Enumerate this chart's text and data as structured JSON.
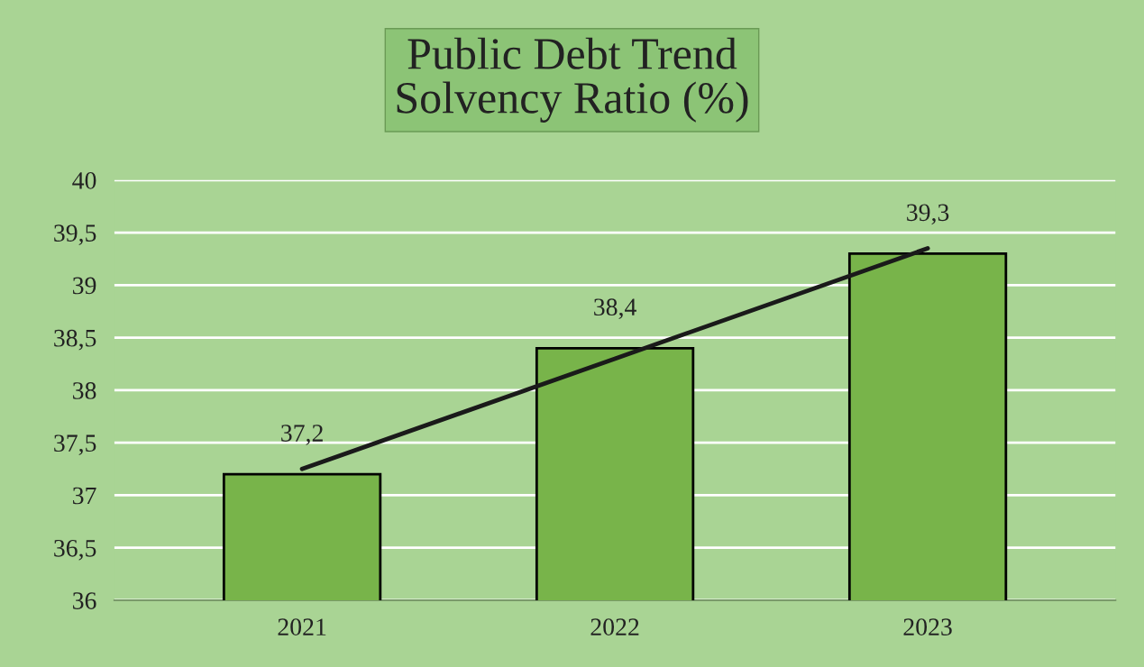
{
  "chart_data": {
    "type": "bar",
    "title": "Public Debt Trend\nSolvency Ratio (%)",
    "categories": [
      "2021",
      "2022",
      "2023"
    ],
    "series": [
      {
        "color": "#78b44a",
        "values": [
          37.2,
          38.4,
          39.3
        ],
        "value_labels": [
          "37,2",
          "38,4",
          "39,3"
        ]
      },
      {
        "type": "line",
        "color": "#1a1a1a",
        "values": [
          37.25,
          38.3,
          39.35
        ]
      }
    ],
    "ylim": [
      36,
      40
    ],
    "yticks": [
      36,
      {
        "value": 36.5,
        "label": "36,5"
      },
      37,
      {
        "value": 37.5,
        "label": "37,5"
      },
      38,
      {
        "value": 38.5,
        "label": "38,5"
      },
      39,
      {
        "value": 39.5,
        "label": "39,5"
      },
      40
    ],
    "grid": "y",
    "legend": false
  }
}
